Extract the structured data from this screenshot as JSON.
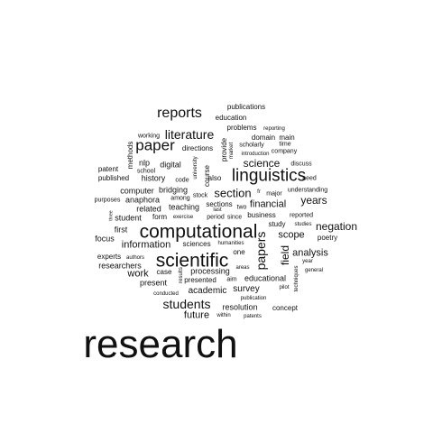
{
  "text_color": "#111111",
  "background": "#ffffff",
  "words": [
    {
      "text": "research"
    },
    {
      "text": "computational"
    },
    {
      "text": "scientific"
    },
    {
      "text": "linguistics"
    },
    {
      "text": "reports"
    },
    {
      "text": "paper"
    },
    {
      "text": "literature"
    },
    {
      "text": "papers"
    },
    {
      "text": "students"
    },
    {
      "text": "section"
    },
    {
      "text": "science"
    },
    {
      "text": "field"
    },
    {
      "text": "negation"
    },
    {
      "text": "years"
    },
    {
      "text": "financial"
    },
    {
      "text": "scope"
    },
    {
      "text": "analysis"
    },
    {
      "text": "information"
    },
    {
      "text": "work"
    },
    {
      "text": "future"
    },
    {
      "text": "academic"
    },
    {
      "text": "survey"
    },
    {
      "text": "educational"
    },
    {
      "text": "resolution"
    },
    {
      "text": "processing"
    },
    {
      "text": "anaphora"
    },
    {
      "text": "teaching"
    },
    {
      "text": "related"
    },
    {
      "text": "bridging"
    },
    {
      "text": "digital"
    },
    {
      "text": "history"
    },
    {
      "text": "nlp"
    },
    {
      "text": "computer"
    },
    {
      "text": "first"
    },
    {
      "text": "focus"
    },
    {
      "text": "experts"
    },
    {
      "text": "researchers"
    },
    {
      "text": "case"
    },
    {
      "text": "present"
    },
    {
      "text": "form"
    },
    {
      "text": "student"
    },
    {
      "text": "sciences"
    },
    {
      "text": "publications"
    },
    {
      "text": "education"
    },
    {
      "text": "problems"
    },
    {
      "text": "domain"
    },
    {
      "text": "main"
    },
    {
      "text": "also"
    },
    {
      "text": "course"
    },
    {
      "text": "provide"
    },
    {
      "text": "directions"
    },
    {
      "text": "methods"
    },
    {
      "text": "working"
    },
    {
      "text": "school"
    },
    {
      "text": "patent"
    },
    {
      "text": "published"
    },
    {
      "text": "code"
    },
    {
      "text": "university"
    },
    {
      "text": "stock"
    },
    {
      "text": "sections"
    },
    {
      "text": "among"
    },
    {
      "text": "purposes"
    },
    {
      "text": "last"
    },
    {
      "text": "period"
    },
    {
      "text": "since"
    },
    {
      "text": "two"
    },
    {
      "text": "business"
    },
    {
      "text": "study"
    },
    {
      "text": "studies"
    },
    {
      "text": "reported"
    },
    {
      "text": "poetry"
    },
    {
      "text": "understanding"
    },
    {
      "text": "major"
    },
    {
      "text": "need"
    },
    {
      "text": "discuss"
    },
    {
      "text": "company"
    },
    {
      "text": "time"
    },
    {
      "text": "reporting"
    },
    {
      "text": "scholarly"
    },
    {
      "text": "market"
    },
    {
      "text": "introduction"
    },
    {
      "text": "one"
    },
    {
      "text": "exercise"
    },
    {
      "text": "humanities"
    },
    {
      "text": "authors"
    },
    {
      "text": "areas"
    },
    {
      "text": "aim"
    },
    {
      "text": "presented"
    },
    {
      "text": "conducted"
    },
    {
      "text": "results"
    },
    {
      "text": "publication"
    },
    {
      "text": "within"
    },
    {
      "text": "patents"
    },
    {
      "text": "concept"
    },
    {
      "text": "year"
    },
    {
      "text": "general"
    },
    {
      "text": "pilot"
    },
    {
      "text": "techniques"
    },
    {
      "text": "three"
    },
    {
      "text": "fr"
    }
  ]
}
